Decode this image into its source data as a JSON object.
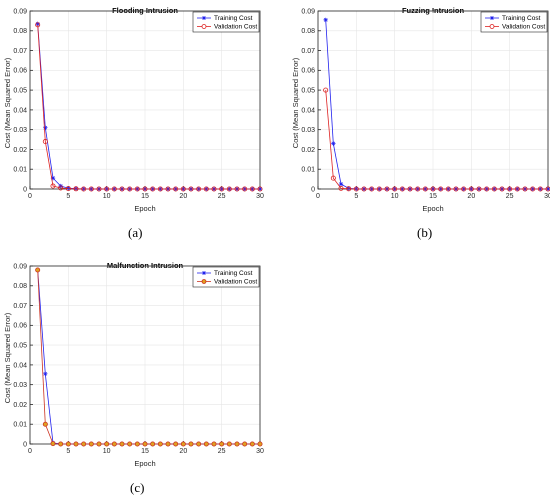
{
  "chart_data": [
    {
      "type": "line",
      "title": "Flooding Intrusion",
      "caption": "(a)",
      "xlabel": "Epoch",
      "ylabel": "Cost (Mean Squared Error)",
      "xlim": [
        0,
        30
      ],
      "ylim": [
        0,
        0.09
      ],
      "xticks": [
        "0",
        "5",
        "10",
        "15",
        "20",
        "25",
        "30"
      ],
      "yticks": [
        "0",
        "0.01",
        "0.02",
        "0.03",
        "0.04",
        "0.05",
        "0.06",
        "0.07",
        "0.08",
        "0.09"
      ],
      "grid": true,
      "legend": "top-right",
      "x": [
        1,
        2,
        3,
        4,
        5,
        6,
        7,
        8,
        9,
        10,
        11,
        12,
        13,
        14,
        15,
        16,
        17,
        18,
        19,
        20,
        21,
        22,
        23,
        24,
        25,
        26,
        27,
        28,
        29,
        30
      ],
      "series": [
        {
          "name": "Training Cost",
          "color": "#2222ee",
          "marker": "star",
          "values": [
            0.0835,
            0.031,
            0.0055,
            0.0015,
            0.0004,
            0.0002,
            0.0001,
            0,
            0,
            0,
            0,
            0,
            0,
            0,
            0,
            0,
            0,
            0,
            0,
            0,
            0,
            0,
            0,
            0,
            0,
            0,
            0,
            0,
            0,
            0
          ]
        },
        {
          "name": "Validation Cost",
          "color": "#dd2222",
          "marker": "circle",
          "values": [
            0.083,
            0.024,
            0.0015,
            0.0005,
            0.0002,
            0.0001,
            0,
            0,
            0,
            0,
            0,
            0,
            0,
            0,
            0,
            0,
            0,
            0,
            0,
            0,
            0,
            0,
            0,
            0,
            0,
            0,
            0,
            0,
            0,
            0
          ]
        }
      ]
    },
    {
      "type": "line",
      "title": "Fuzzing Intrusion",
      "caption": "(b)",
      "xlabel": "Epoch",
      "ylabel": "Cost (Mean Squared Error)",
      "xlim": [
        0,
        30
      ],
      "ylim": [
        0,
        0.09
      ],
      "xticks": [
        "0",
        "5",
        "10",
        "15",
        "20",
        "25",
        "30"
      ],
      "yticks": [
        "0",
        "0.01",
        "0.02",
        "0.03",
        "0.04",
        "0.05",
        "0.06",
        "0.07",
        "0.08",
        "0.09"
      ],
      "grid": true,
      "legend": "top-right",
      "x": [
        1,
        2,
        3,
        4,
        5,
        6,
        7,
        8,
        9,
        10,
        11,
        12,
        13,
        14,
        15,
        16,
        17,
        18,
        19,
        20,
        21,
        22,
        23,
        24,
        25,
        26,
        27,
        28,
        29,
        30
      ],
      "series": [
        {
          "name": "Training Cost",
          "color": "#2222ee",
          "marker": "star",
          "values": [
            0.0855,
            0.023,
            0.0025,
            0.0003,
            0.0001,
            0,
            0,
            0,
            0,
            0,
            0,
            0,
            0,
            0,
            0,
            0,
            0,
            0,
            0,
            0,
            0,
            0,
            0,
            0,
            0,
            0,
            0,
            0,
            0,
            0
          ]
        },
        {
          "name": "Validation Cost",
          "color": "#dd2222",
          "marker": "circle",
          "values": [
            0.05,
            0.0055,
            0.0003,
            0.0001,
            0,
            0,
            0,
            0,
            0,
            0,
            0,
            0,
            0,
            0,
            0,
            0,
            0,
            0,
            0,
            0,
            0,
            0,
            0,
            0,
            0,
            0,
            0,
            0,
            0,
            0
          ]
        }
      ]
    },
    {
      "type": "line",
      "title": "Malfunction Intrusion",
      "caption": "(c)",
      "xlabel": "Epoch",
      "ylabel": "Cost (Mean Squared Error)",
      "xlim": [
        0,
        30
      ],
      "ylim": [
        0,
        0.09
      ],
      "xticks": [
        "0",
        "5",
        "10",
        "15",
        "20",
        "25",
        "30"
      ],
      "yticks": [
        "0",
        "0.01",
        "0.02",
        "0.03",
        "0.04",
        "0.05",
        "0.06",
        "0.07",
        "0.08",
        "0.09"
      ],
      "grid": true,
      "legend": "top-right",
      "x": [
        1,
        2,
        3,
        4,
        5,
        6,
        7,
        8,
        9,
        10,
        11,
        12,
        13,
        14,
        15,
        16,
        17,
        18,
        19,
        20,
        21,
        22,
        23,
        24,
        25,
        26,
        27,
        28,
        29,
        30
      ],
      "series": [
        {
          "name": "Training Cost",
          "color": "#2222ee",
          "marker": "star",
          "values": [
            0.088,
            0.0355,
            0.0005,
            0.0001,
            0,
            0,
            0,
            0,
            0,
            0,
            0,
            0,
            0,
            0,
            0,
            0,
            0,
            0,
            0,
            0,
            0,
            0,
            0,
            0,
            0,
            0,
            0,
            0,
            0,
            0
          ]
        },
        {
          "name": "Validation Cost",
          "color": "#cc3322",
          "marker": "circle",
          "marker_fill": "#e0a020",
          "values": [
            0.088,
            0.01,
            0.0002,
            0,
            0,
            0,
            0,
            0,
            0,
            0,
            0,
            0,
            0,
            0,
            0,
            0,
            0,
            0,
            0,
            0,
            0,
            0,
            0,
            0,
            0,
            0,
            0,
            0,
            0,
            0
          ]
        }
      ]
    }
  ]
}
